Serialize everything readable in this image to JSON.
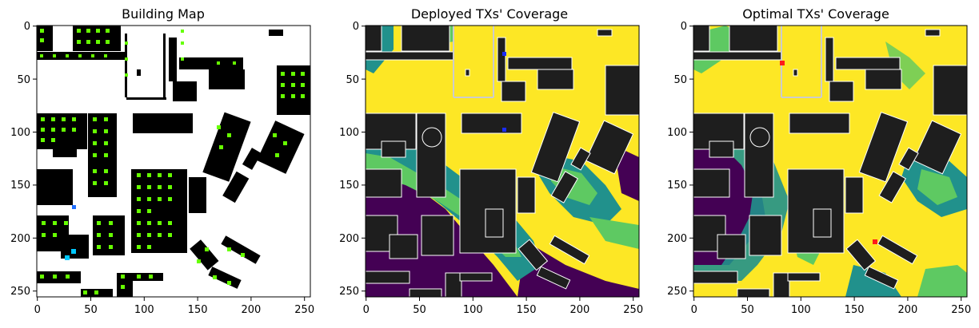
{
  "chart_data": [
    {
      "type": "heatmap",
      "title": "Building Map",
      "xlim": [
        0,
        256
      ],
      "ylim": [
        256,
        0
      ],
      "x_ticks": [
        "0",
        "50",
        "100",
        "150",
        "200",
        "250"
      ],
      "y_ticks": [
        "0",
        "50",
        "100",
        "150",
        "200",
        "250"
      ],
      "markers": [
        {
          "name": "deployed_tx",
          "x": 35,
          "y": 170,
          "color": "#1f6fff"
        },
        {
          "name": "cyan_points",
          "x": 35,
          "y": 213,
          "color": "#00c8ff"
        }
      ]
    },
    {
      "type": "heatmap",
      "title": "Deployed TXs' Coverage",
      "xlim": [
        0,
        256
      ],
      "ylim": [
        256,
        0
      ],
      "x_ticks": [
        "0",
        "50",
        "100",
        "150",
        "200",
        "250"
      ],
      "y_ticks": [
        "0",
        "50",
        "100",
        "150",
        "200",
        "250"
      ],
      "markers": [
        {
          "name": "tx_1",
          "x": 130,
          "y": 27,
          "color": "#1a2cff"
        },
        {
          "name": "tx_2",
          "x": 130,
          "y": 98,
          "color": "#1a2cff"
        }
      ]
    },
    {
      "type": "heatmap",
      "title": "Optimal TXs' Coverage",
      "xlim": [
        0,
        256
      ],
      "ylim": [
        256,
        0
      ],
      "x_ticks": [
        "0",
        "50",
        "100",
        "150",
        "200",
        "250"
      ],
      "y_ticks": [
        "0",
        "50",
        "100",
        "150",
        "200",
        "250"
      ],
      "markers": [
        {
          "name": "tx_1",
          "x": 83,
          "y": 35,
          "color": "#ff1a1a"
        },
        {
          "name": "tx_2",
          "x": 170,
          "y": 203,
          "color": "#ff1a1a"
        }
      ]
    }
  ],
  "colors": {
    "building": "#000000",
    "building_fill": "#1e1e1e",
    "high": "#fde725",
    "mid_high": "#5ec962",
    "mid": "#21918c",
    "low": "#440154",
    "green_marker": "#66ff00"
  }
}
